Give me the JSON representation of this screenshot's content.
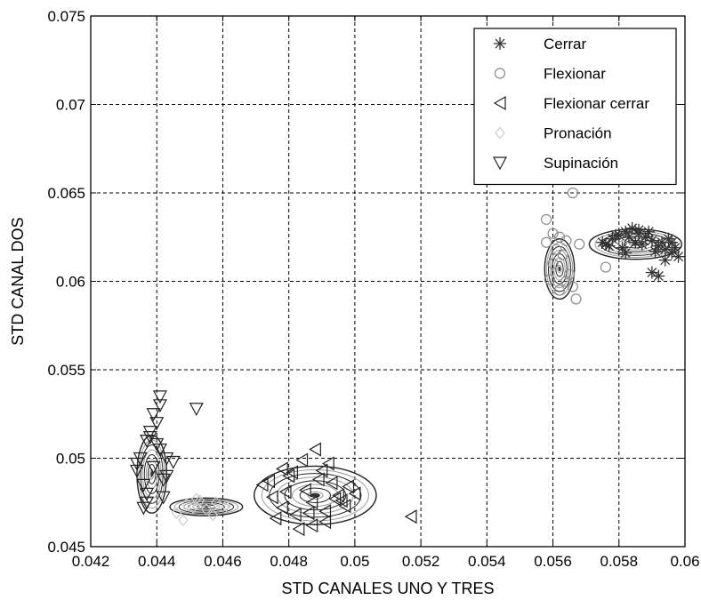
{
  "chart_data": {
    "type": "scatter",
    "xlabel": "STD CANALES UNO Y TRES",
    "ylabel": "STD CANAL DOS",
    "xlim": [
      0.042,
      0.06
    ],
    "ylim": [
      0.045,
      0.075
    ],
    "x_ticks": [
      "0.042",
      "0.044",
      "0.046",
      "0.048",
      "0.05",
      "0.052",
      "0.054",
      "0.056",
      "0.058",
      "0.06"
    ],
    "y_ticks": [
      "0.045",
      "0.05",
      "0.055",
      "0.06",
      "0.065",
      "0.07",
      "0.075"
    ],
    "x_tick_values": [
      0.042,
      0.044,
      0.046,
      0.048,
      0.05,
      0.052,
      0.054,
      0.056,
      0.058,
      0.06
    ],
    "y_tick_values": [
      0.045,
      0.05,
      0.055,
      0.06,
      0.065,
      0.07,
      0.075
    ],
    "grid": true,
    "legend_position": "top-right",
    "series": [
      {
        "name": "Cerrar",
        "marker": "asterisk",
        "color": "#333333",
        "ellipse": {
          "cx": 0.0585,
          "cy": 0.0621,
          "rx": 0.0014,
          "ry": 0.00085,
          "color": "#222222"
        },
        "x": [
          0.0575,
          0.0578,
          0.058,
          0.0582,
          0.0584,
          0.0586,
          0.0588,
          0.059,
          0.0592,
          0.0594,
          0.0596,
          0.0598,
          0.0577,
          0.0581,
          0.0585,
          0.0589,
          0.0593,
          0.0597,
          0.0579,
          0.0583,
          0.0587,
          0.0591,
          0.0595,
          0.0576,
          0.059,
          0.0592,
          0.0594,
          0.0586,
          0.0582,
          0.0596
        ],
        "y": [
          0.0622,
          0.0624,
          0.0626,
          0.0628,
          0.063,
          0.0627,
          0.0625,
          0.0623,
          0.062,
          0.0618,
          0.0616,
          0.0614,
          0.062,
          0.0619,
          0.0622,
          0.0628,
          0.0622,
          0.0619,
          0.0626,
          0.0625,
          0.0621,
          0.0617,
          0.0624,
          0.0621,
          0.0605,
          0.0603,
          0.0612,
          0.0629,
          0.0616,
          0.0622
        ]
      },
      {
        "name": "Flexionar",
        "marker": "circle",
        "color": "#8a8a8a",
        "ellipse": {
          "cx": 0.0562,
          "cy": 0.0607,
          "rx": 0.00045,
          "ry": 0.0017,
          "color": "#222222"
        },
        "x": [
          0.0558,
          0.056,
          0.0562,
          0.0564,
          0.0566,
          0.0568,
          0.0558,
          0.056,
          0.0564,
          0.0566,
          0.0559,
          0.0563,
          0.0565,
          0.0562,
          0.0576,
          0.0561,
          0.0567
        ],
        "y": [
          0.0635,
          0.0627,
          0.0625,
          0.0623,
          0.065,
          0.0621,
          0.0622,
          0.061,
          0.06,
          0.0597,
          0.0601,
          0.0615,
          0.0604,
          0.0595,
          0.0608,
          0.0618,
          0.059
        ]
      },
      {
        "name": "Flexionar cerrar",
        "marker": "triangle-left",
        "color": "#222222",
        "ellipse": {
          "cx": 0.0488,
          "cy": 0.0479,
          "rx": 0.00185,
          "ry": 0.00165,
          "color": "#222222"
        },
        "x": [
          0.0472,
          0.0475,
          0.0478,
          0.048,
          0.0482,
          0.0485,
          0.0487,
          0.0489,
          0.0491,
          0.0493,
          0.0495,
          0.0497,
          0.0476,
          0.0481,
          0.0486,
          0.049,
          0.0494,
          0.0498,
          0.0479,
          0.0484,
          0.0488,
          0.0492,
          0.0496,
          0.0483,
          0.0487,
          0.0517,
          0.0474,
          0.05,
          0.0478,
          0.0491
        ],
        "y": [
          0.0485,
          0.0478,
          0.0472,
          0.049,
          0.0468,
          0.0482,
          0.0475,
          0.0488,
          0.047,
          0.0486,
          0.0479,
          0.0473,
          0.0466,
          0.0492,
          0.0469,
          0.0493,
          0.0477,
          0.0484,
          0.0481,
          0.0499,
          0.0505,
          0.0497,
          0.0476,
          0.046,
          0.0462,
          0.0467,
          0.0487,
          0.048,
          0.0494,
          0.0464
        ]
      },
      {
        "name": "Pronación",
        "marker": "diamond",
        "color": "#cccccc",
        "ellipse": {
          "cx": 0.0455,
          "cy": 0.04725,
          "rx": 0.0011,
          "ry": 0.0005,
          "color": "#222222"
        },
        "x": [
          0.0446,
          0.0449,
          0.0452,
          0.0455,
          0.0458,
          0.0461,
          0.0448,
          0.0453,
          0.0457,
          0.0451
        ],
        "y": [
          0.0469,
          0.0474,
          0.0477,
          0.0471,
          0.0475,
          0.0473,
          0.0465,
          0.0476,
          0.0468,
          0.0472
        ]
      },
      {
        "name": "Supinación",
        "marker": "triangle-down",
        "color": "#222222",
        "ellipse": {
          "cx": 0.04385,
          "cy": 0.0491,
          "rx": 0.00045,
          "ry": 0.0022,
          "color": "#222222"
        },
        "x": [
          0.0435,
          0.0437,
          0.0439,
          0.0441,
          0.0443,
          0.0436,
          0.0438,
          0.044,
          0.0442,
          0.0434,
          0.0436,
          0.0439,
          0.0441,
          0.0443,
          0.0437,
          0.044,
          0.0442,
          0.0434,
          0.0438,
          0.0445,
          0.0441,
          0.0437
        ],
        "y": [
          0.05,
          0.051,
          0.0495,
          0.0505,
          0.049,
          0.0485,
          0.0515,
          0.052,
          0.0478,
          0.0493,
          0.0472,
          0.0525,
          0.053,
          0.05,
          0.048,
          0.0508,
          0.0488,
          0.0497,
          0.0512,
          0.0498,
          0.0535,
          0.0475
        ]
      }
    ],
    "extra_points": [
      {
        "series": "Supinación",
        "x": 0.0452,
        "y": 0.0528
      }
    ]
  }
}
